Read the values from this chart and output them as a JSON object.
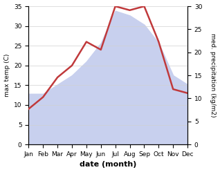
{
  "months": [
    "Jan",
    "Feb",
    "Mar",
    "Apr",
    "May",
    "Jun",
    "Jul",
    "Aug",
    "Sep",
    "Oct",
    "Nov",
    "Dec"
  ],
  "temp": [
    9,
    12,
    17,
    20,
    26,
    24,
    35,
    34,
    35,
    26,
    14,
    13
  ],
  "precip": [
    11,
    11,
    13,
    15,
    18,
    22,
    29,
    28,
    26,
    22,
    15,
    13
  ],
  "temp_color": "#c0393b",
  "precip_fill_color": "#c8d0ee",
  "temp_ylim": [
    0,
    35
  ],
  "precip_ylim": [
    0,
    30
  ],
  "temp_yticks": [
    0,
    5,
    10,
    15,
    20,
    25,
    30,
    35
  ],
  "precip_yticks": [
    0,
    5,
    10,
    15,
    20,
    25,
    30
  ],
  "ylabel_left": "max temp (C)",
  "ylabel_right": "med. precipitation (kg/m2)",
  "xlabel": "date (month)",
  "bg_color": "#ffffff",
  "grid_color": "#d0d0d0"
}
